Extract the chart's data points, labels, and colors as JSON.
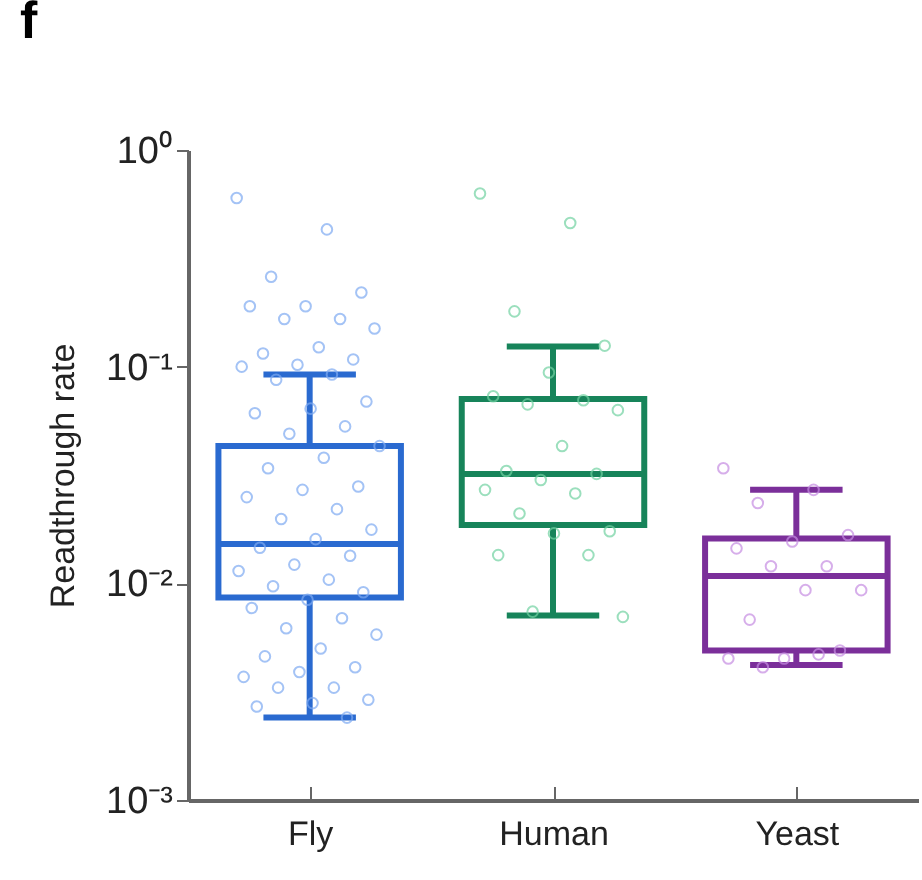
{
  "chart_data": {
    "type": "box",
    "title": "f",
    "ylabel": "Readthrough rate",
    "categories": [
      "Fly",
      "Human",
      "Yeast"
    ],
    "boxes": [
      {
        "low": 0.0024,
        "q1": 0.0086,
        "median": 0.0152,
        "q3": 0.043,
        "high": 0.092
      },
      {
        "low": 0.0071,
        "q1": 0.0186,
        "median": 0.032,
        "q3": 0.071,
        "high": 0.124
      },
      {
        "low": 0.0042,
        "q1": 0.0049,
        "median": 0.0108,
        "q3": 0.0161,
        "high": 0.027
      }
    ],
    "colors": [
      "#2a6ad0",
      "#17845a",
      "#7b2f9a"
    ],
    "log": "y",
    "ylim": [
      0.001,
      1
    ],
    "yticks": [
      {
        "value": 0.001,
        "label": "10⁻³"
      },
      {
        "value": 0.01,
        "label": "10⁻²"
      },
      {
        "value": 0.1,
        "label": "10⁻¹"
      },
      {
        "value": 1,
        "label": "10⁰"
      }
    ],
    "grid": false,
    "marker": "circle",
    "series": [
      {
        "type": "scatter",
        "color": "#7eaaf2",
        "x": [
          "Fly",
          "Fly",
          "Fly",
          "Fly",
          "Fly",
          "Fly",
          "Fly",
          "Fly",
          "Fly",
          "Fly",
          "Fly",
          "Fly",
          "Fly",
          "Fly",
          "Fly",
          "Fly",
          "Fly",
          "Fly",
          "Fly",
          "Fly",
          "Fly",
          "Fly",
          "Fly",
          "Fly",
          "Fly",
          "Fly",
          "Fly",
          "Fly",
          "Fly",
          "Fly",
          "Fly",
          "Fly",
          "Fly",
          "Fly",
          "Fly",
          "Fly",
          "Fly",
          "Fly",
          "Fly",
          "Fly",
          "Fly",
          "Fly",
          "Fly",
          "Fly",
          "Fly",
          "Fly",
          "Fly",
          "Fly",
          "Fly",
          "Fly",
          "Fly",
          "Fly",
          "Fly",
          "Fly"
        ],
        "values": [
          0.6,
          0.43,
          0.26,
          0.22,
          0.19,
          0.19,
          0.166,
          0.166,
          0.15,
          0.123,
          0.115,
          0.108,
          0.102,
          0.1,
          0.092,
          0.087,
          0.069,
          0.064,
          0.061,
          0.053,
          0.049,
          0.043,
          0.038,
          0.034,
          0.028,
          0.027,
          0.025,
          0.022,
          0.0198,
          0.0177,
          0.016,
          0.0146,
          0.0134,
          0.0122,
          0.0114,
          0.0104,
          0.0097,
          0.0091,
          0.0084,
          0.0077,
          0.0069,
          0.0062,
          0.0058,
          0.005,
          0.0046,
          0.0041,
          0.0039,
          0.0037,
          0.0033,
          0.0033,
          0.0029,
          0.0028,
          0.0027,
          0.0024
        ]
      },
      {
        "type": "scatter",
        "color": "#72d2a2",
        "x": [
          "Human",
          "Human",
          "Human",
          "Human",
          "Human",
          "Human",
          "Human",
          "Human",
          "Human",
          "Human",
          "Human",
          "Human",
          "Human",
          "Human",
          "Human",
          "Human",
          "Human",
          "Human",
          "Human",
          "Human",
          "Human",
          "Human"
        ],
        "values": [
          0.63,
          0.46,
          0.18,
          0.125,
          0.094,
          0.073,
          0.07,
          0.067,
          0.063,
          0.043,
          0.033,
          0.032,
          0.03,
          0.027,
          0.026,
          0.021,
          0.0174,
          0.017,
          0.0135,
          0.0135,
          0.0074,
          0.007
        ]
      },
      {
        "type": "scatter",
        "color": "#c68de2",
        "x": [
          "Yeast",
          "Yeast",
          "Yeast",
          "Yeast",
          "Yeast",
          "Yeast",
          "Yeast",
          "Yeast",
          "Yeast",
          "Yeast",
          "Yeast",
          "Yeast",
          "Yeast",
          "Yeast",
          "Yeast",
          "Yeast"
        ],
        "values": [
          0.034,
          0.027,
          0.0235,
          0.0167,
          0.0156,
          0.0145,
          0.012,
          0.012,
          0.0093,
          0.0093,
          0.0068,
          0.0049,
          0.0045,
          0.0045,
          0.0047,
          0.0041
        ]
      }
    ]
  }
}
